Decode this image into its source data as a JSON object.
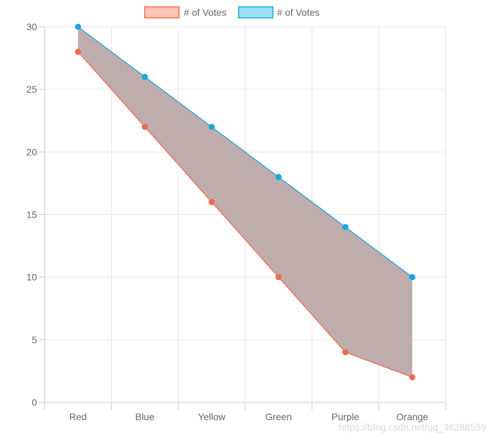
{
  "chart_data": {
    "type": "line",
    "title": "",
    "xlabel": "",
    "ylabel": "",
    "categories": [
      "Red",
      "Blue",
      "Yellow",
      "Green",
      "Purple",
      "Orange"
    ],
    "ylim": [
      0,
      30
    ],
    "yticks": [
      0,
      5,
      10,
      15,
      20,
      25,
      30
    ],
    "grid": true,
    "legend_position": "top-center",
    "series": [
      {
        "name": "# of Votes",
        "values": [
          28,
          22,
          16,
          10,
          4,
          2
        ],
        "color": "#f26a4f",
        "fill_color": "#ffc4b5"
      },
      {
        "name": "# of Votes",
        "values": [
          30,
          26,
          22,
          18,
          14,
          10
        ],
        "color": "#1aa7dc",
        "fill_color": "#9be0f5"
      }
    ],
    "area_between_series_color": "#bfadad"
  },
  "watermark": "https://blog.csdn.net/qq_36288559"
}
